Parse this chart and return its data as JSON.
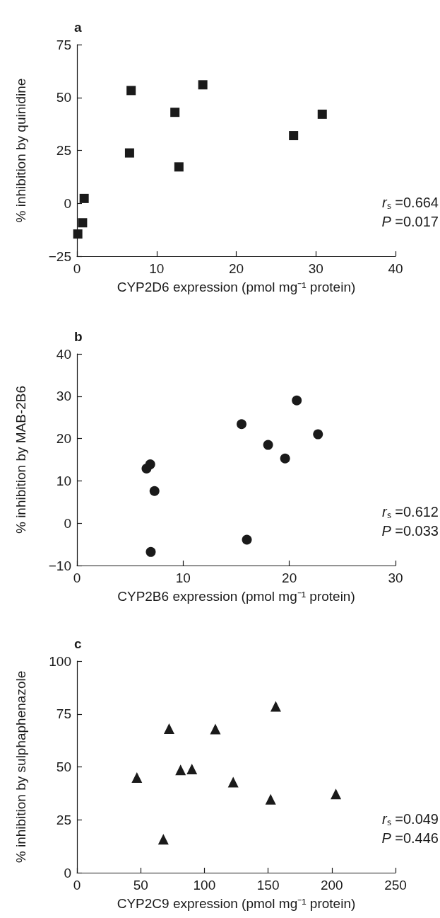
{
  "chart_data": [
    {
      "type": "scatter",
      "title": "a",
      "xlabel": "CYP2D6 expression (pmol mg⁻¹ protein)",
      "ylabel": "% inhibition by quinidine",
      "marker": "square",
      "x": [
        0.1,
        0.7,
        0.9,
        6.6,
        6.8,
        12.3,
        12.8,
        15.8,
        27.2,
        30.8
      ],
      "series": [
        {
          "color": "#1a1a1a",
          "values": [
            -14.5,
            -9.2,
            2.3,
            23.8,
            53.3,
            43,
            17.2,
            56,
            32,
            42.1
          ]
        }
      ],
      "xlim": [
        0,
        40
      ],
      "xticks": [
        0,
        10,
        20,
        30,
        40
      ],
      "ylim": [
        -25,
        75
      ],
      "yticks": [
        {
          "value": -25,
          "label": "−25"
        },
        0,
        25,
        50,
        75
      ],
      "annotations": [
        "rₛ =0.664",
        "P =0.017"
      ]
    },
    {
      "type": "scatter",
      "title": "b",
      "xlabel": "CYP2B6 expression (pmol mg⁻¹ protein)",
      "ylabel": "% inhibition by MAB-2B6",
      "marker": "circle",
      "x": [
        6.55,
        6.9,
        7.3,
        6.95,
        15.5,
        16.0,
        18.0,
        19.6,
        20.7,
        22.7
      ],
      "series": [
        {
          "color": "#1a1a1a",
          "values": [
            12.9,
            13.9,
            7.6,
            -6.8,
            23.4,
            -3.9,
            18.5,
            15.3,
            29.0,
            21.0
          ]
        }
      ],
      "xlim": [
        0,
        30
      ],
      "xticks": [
        0,
        10,
        20,
        30
      ],
      "ylim": [
        -10,
        40
      ],
      "yticks": [
        {
          "value": -10,
          "label": "−10"
        },
        0,
        10,
        20,
        30,
        40
      ],
      "annotations": [
        "rₛ =0.612",
        "P =0.033"
      ]
    },
    {
      "type": "scatter",
      "title": "c",
      "xlabel": "CYP2C9 expression (pmol mg⁻¹ protein)",
      "ylabel": "% inhibition by sulphaphenazole",
      "marker": "triangle",
      "x": [
        47,
        67.8,
        72.3,
        81.3,
        90.2,
        108.6,
        122.6,
        152,
        156,
        203.2
      ],
      "series": [
        {
          "color": "#1a1a1a",
          "values": [
            45,
            15.8,
            68.1,
            48.6,
            49,
            67.9,
            42.8,
            34.7,
            78.6,
            37.2
          ]
        }
      ],
      "xlim": [
        0,
        250
      ],
      "xticks": [
        0,
        50,
        100,
        150,
        200,
        250
      ],
      "ylim": [
        0,
        100
      ],
      "yticks": [
        0,
        25,
        50,
        75,
        100
      ],
      "annotations": [
        "rₛ =0.049",
        "P =0.446"
      ]
    }
  ]
}
